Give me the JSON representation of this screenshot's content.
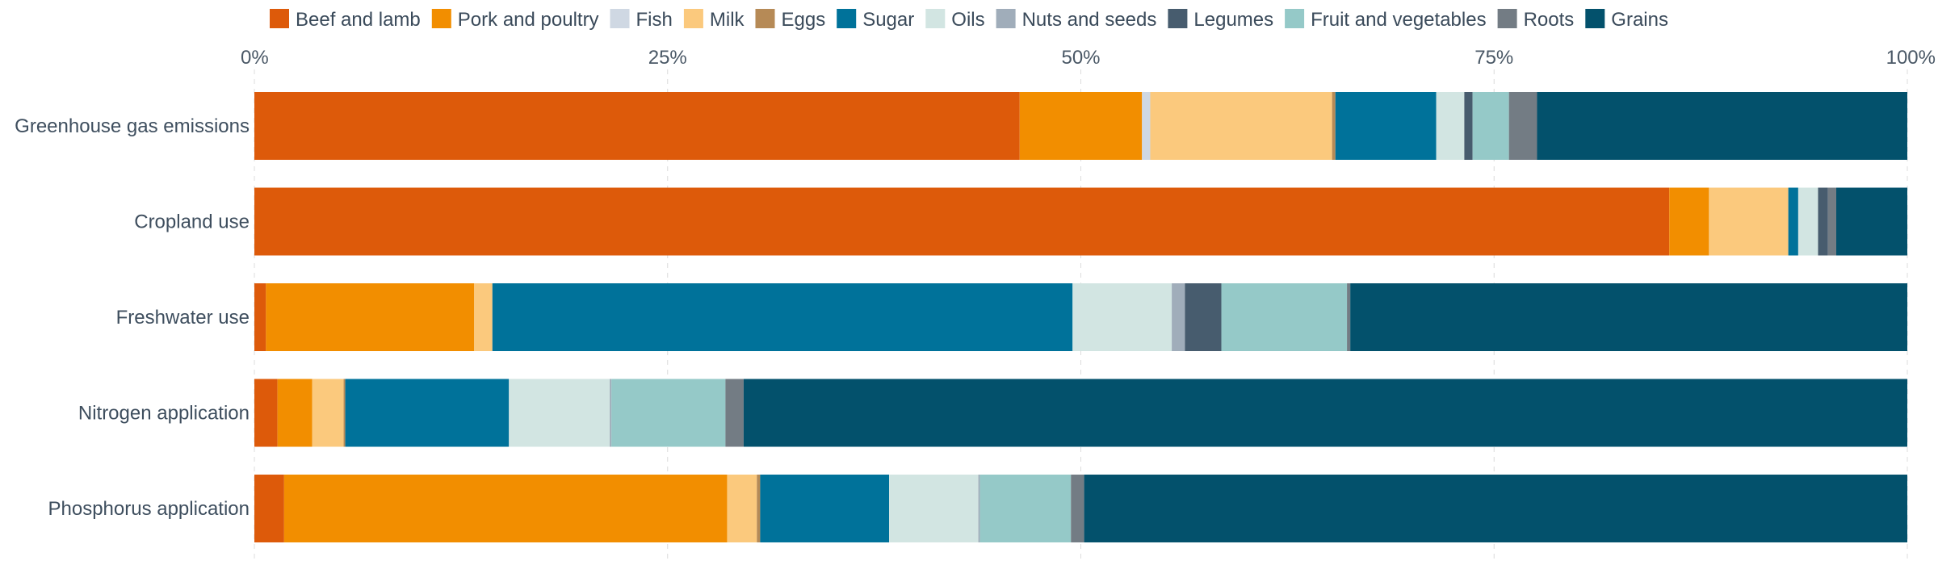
{
  "chart_data": {
    "type": "bar",
    "orientation": "horizontal",
    "stacked": true,
    "title": "",
    "xlabel": "",
    "ylabel": "",
    "xlim": [
      0,
      100
    ],
    "x_ticks": [
      "0%",
      "25%",
      "50%",
      "75%",
      "100%"
    ],
    "x_tick_values": [
      0,
      25,
      50,
      75,
      100
    ],
    "legend_position": "top",
    "grid": true,
    "categories": [
      "Greenhouse gas emissions",
      "Cropland use",
      "Freshwater use",
      "Nitrogen application",
      "Phosphorus application"
    ],
    "series": [
      {
        "name": "Beef and lamb",
        "color": "#dd5a0a",
        "values": [
          46.3,
          85.6,
          0.7,
          1.4,
          1.8
        ]
      },
      {
        "name": "Pork and poultry",
        "color": "#f28e00",
        "values": [
          7.4,
          2.4,
          12.6,
          2.1,
          26.8
        ]
      },
      {
        "name": "Fish",
        "color": "#cfd8e3",
        "values": [
          0.5,
          0.0,
          0.0,
          0.0,
          0.0
        ]
      },
      {
        "name": "Milk",
        "color": "#fbc97d",
        "values": [
          11.0,
          4.8,
          1.1,
          1.9,
          1.8
        ]
      },
      {
        "name": "Eggs",
        "color": "#b68a56",
        "values": [
          0.2,
          0.0,
          0.0,
          0.1,
          0.2
        ]
      },
      {
        "name": "Sugar",
        "color": "#00729a",
        "values": [
          6.1,
          0.6,
          35.1,
          9.9,
          7.8
        ]
      },
      {
        "name": "Oils",
        "color": "#d2e5e2",
        "values": [
          1.7,
          1.2,
          6.0,
          6.1,
          5.4
        ]
      },
      {
        "name": "Nuts and seeds",
        "color": "#a0adba",
        "values": [
          0.0,
          0.0,
          0.8,
          0.1,
          0.1
        ]
      },
      {
        "name": "Legumes",
        "color": "#475c6e",
        "values": [
          0.5,
          0.6,
          2.2,
          0.0,
          0.0
        ]
      },
      {
        "name": "Fruit and vegetables",
        "color": "#95c9c8",
        "values": [
          2.2,
          0.0,
          7.6,
          6.9,
          5.5
        ]
      },
      {
        "name": "Roots",
        "color": "#737c84",
        "values": [
          1.7,
          0.5,
          0.2,
          1.1,
          0.8
        ]
      },
      {
        "name": "Grains",
        "color": "#03516c",
        "values": [
          22.4,
          4.3,
          33.7,
          70.4,
          49.8
        ]
      }
    ]
  }
}
